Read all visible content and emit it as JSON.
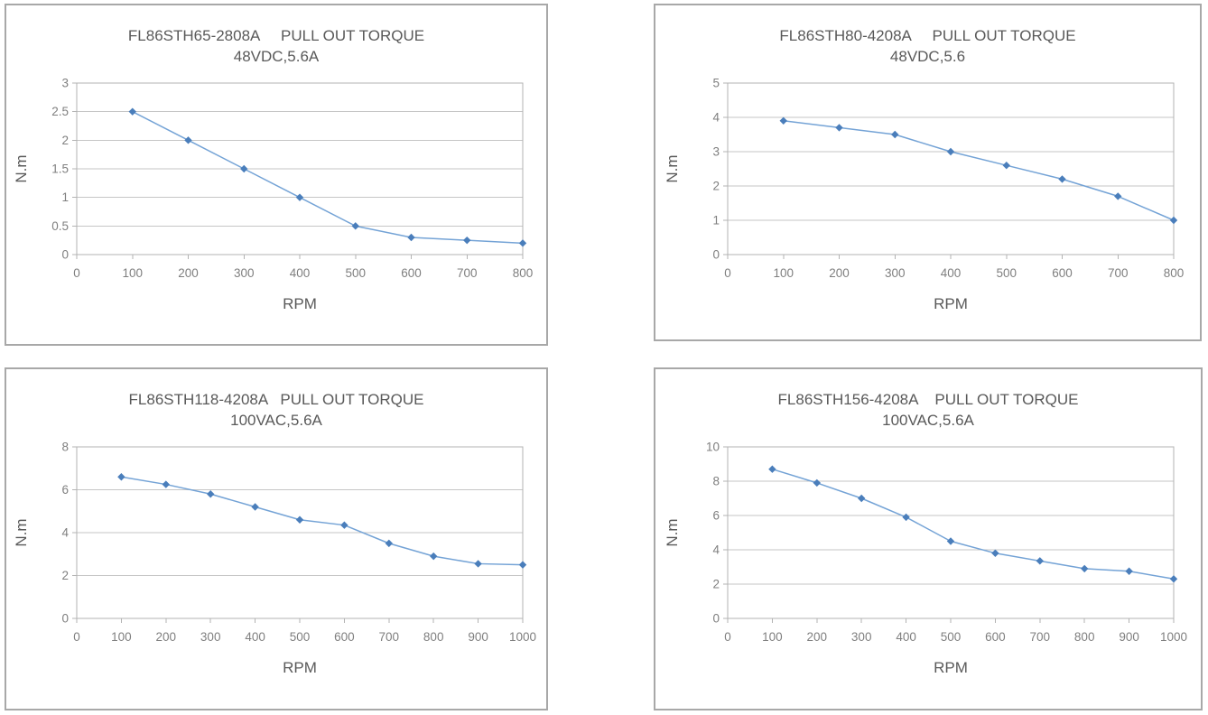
{
  "colors": {
    "line": "#74a3d6",
    "marker": "#4a7ebb",
    "grid": "#c6c6c6",
    "plot_border": "#b3b3b3",
    "box_border": "#a8a8a8",
    "tick_label": "#7f7f7f",
    "title_text": "#595959",
    "axis_title": "#595959",
    "background": "#ffffff"
  },
  "chart_data": [
    {
      "type": "line",
      "title": "FL86STH65-2808A     PULL OUT TORQUE",
      "subtitle": "48VDC,5.6A",
      "xlabel": "RPM",
      "ylabel": "N.m",
      "x": [
        100,
        200,
        300,
        400,
        500,
        600,
        700,
        800
      ],
      "values": [
        2.5,
        2,
        1.5,
        1,
        0.5,
        0.3,
        0.25,
        0.2
      ],
      "xlim": [
        0,
        800
      ],
      "ylim": [
        0,
        3
      ],
      "xticks": [
        0,
        100,
        200,
        300,
        400,
        500,
        600,
        700,
        800
      ],
      "yticks": [
        0,
        0.5,
        1,
        1.5,
        2,
        2.5,
        3
      ],
      "grid": "horizontal",
      "legend": "none",
      "marker": "diamond"
    },
    {
      "type": "line",
      "title": "FL86STH80-4208A     PULL OUT TORQUE",
      "subtitle": "48VDC,5.6",
      "xlabel": "RPM",
      "ylabel": "N.m",
      "x": [
        100,
        200,
        300,
        400,
        500,
        600,
        700,
        800
      ],
      "values": [
        3.9,
        3.7,
        3.5,
        3,
        2.6,
        2.2,
        1.7,
        1
      ],
      "xlim": [
        0,
        800
      ],
      "ylim": [
        0,
        5
      ],
      "xticks": [
        0,
        100,
        200,
        300,
        400,
        500,
        600,
        700,
        800
      ],
      "yticks": [
        0,
        1,
        2,
        3,
        4,
        5
      ],
      "grid": "horizontal",
      "legend": "none",
      "marker": "diamond"
    },
    {
      "type": "line",
      "title": "FL86STH118-4208A   PULL OUT TORQUE",
      "subtitle": "100VAC,5.6A",
      "xlabel": "RPM",
      "ylabel": "N.m",
      "x": [
        100,
        200,
        300,
        400,
        500,
        600,
        700,
        800,
        900,
        1000
      ],
      "values": [
        6.6,
        6.25,
        5.8,
        5.2,
        4.6,
        4.35,
        3.5,
        2.9,
        2.55,
        2.5
      ],
      "xlim": [
        0,
        1000
      ],
      "ylim": [
        0,
        8
      ],
      "xticks": [
        0,
        100,
        200,
        300,
        400,
        500,
        600,
        700,
        800,
        900,
        1000
      ],
      "yticks": [
        0,
        2,
        4,
        6,
        8
      ],
      "grid": "horizontal",
      "legend": "none",
      "marker": "diamond"
    },
    {
      "type": "line",
      "title": "FL86STH156-4208A    PULL OUT TORQUE",
      "subtitle": "100VAC,5.6A",
      "xlabel": "RPM",
      "ylabel": "N.m",
      "x": [
        100,
        200,
        300,
        400,
        500,
        600,
        700,
        800,
        900,
        1000
      ],
      "values": [
        8.7,
        7.9,
        7,
        5.9,
        4.5,
        3.8,
        3.35,
        2.9,
        2.75,
        2.3
      ],
      "xlim": [
        0,
        1000
      ],
      "ylim": [
        0,
        10
      ],
      "xticks": [
        0,
        100,
        200,
        300,
        400,
        500,
        600,
        700,
        800,
        900,
        1000
      ],
      "yticks": [
        0,
        2,
        4,
        6,
        8,
        10
      ],
      "grid": "horizontal",
      "legend": "none",
      "marker": "diamond"
    }
  ]
}
